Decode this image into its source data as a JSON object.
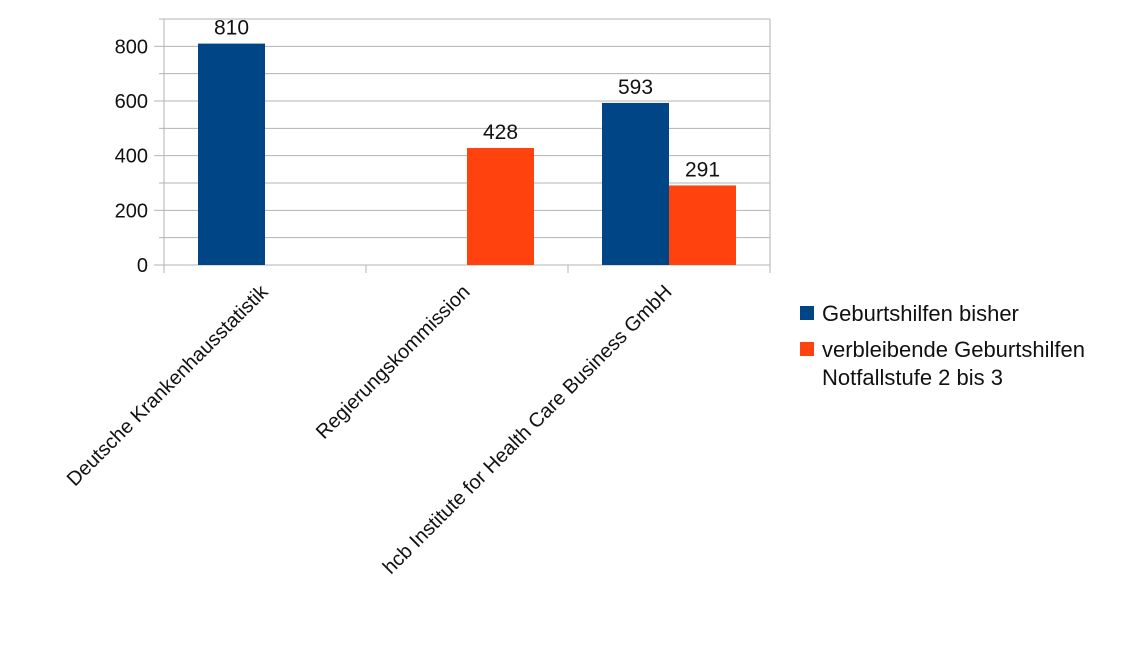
{
  "chart_data": {
    "type": "bar",
    "categories": [
      "Deutsche Krankenhausstatistik",
      "Regierungskommission",
      "hcb Institute for Health Care Business GmbH"
    ],
    "series": [
      {
        "name": "Geburtshilfen bisher",
        "color": "#004586",
        "values": [
          810,
          null,
          593
        ]
      },
      {
        "name": "verbleibende Geburtshilfen Notfallstufe 2 bis 3",
        "color": "#ff420e",
        "values": [
          null,
          428,
          291
        ]
      }
    ],
    "ylim": [
      0,
      900
    ],
    "yticks": [
      0,
      200,
      400,
      600,
      800
    ],
    "grid": true,
    "legend_position": "right",
    "data_labels": true
  }
}
